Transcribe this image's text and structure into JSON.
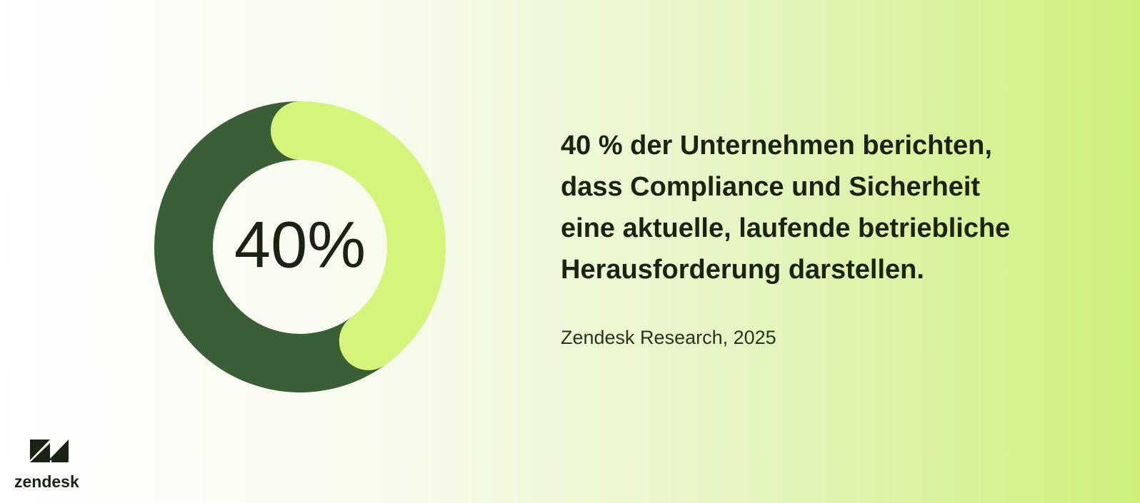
{
  "chart_data": {
    "type": "donut",
    "categories": [
      null,
      null
    ],
    "values": [
      40,
      60
    ],
    "value_labels": [
      "40%",
      null
    ],
    "colors": [
      "#d4f57a",
      "#3a5f36"
    ]
  },
  "headline": [
    "40 % der Unternehmen berichten,",
    "dass Compliance und Sicherheit",
    "eine aktuelle, laufende betriebliche",
    "Herausforderung darstellen."
  ],
  "source": "Zendesk Research, 2025",
  "logo": "zendesk"
}
